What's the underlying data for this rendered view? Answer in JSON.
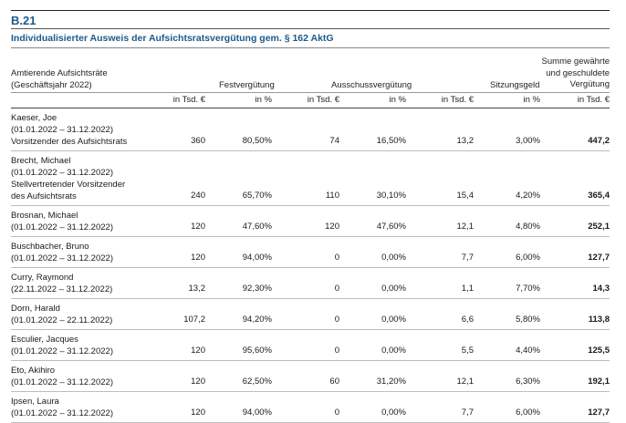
{
  "doc": {
    "tag": "B.21",
    "title": "Individualisierter Ausweis der Aufsichtsratsvergütung gem. § 162 AktG"
  },
  "header": {
    "member_col_line1": "Amtierende Aufsichtsräte",
    "member_col_line2": "(Geschäftsjahr 2022)",
    "fixed": "Festvergütung",
    "committee": "Ausschussvergütung",
    "attendance": "Sitzungsgeld",
    "total_line1": "Summe gewährte",
    "total_line2": "und geschuldete",
    "total_line3": "Vergütung",
    "units": {
      "fixed_abs": "in Tsd. €",
      "fixed_pct": "in %",
      "committee_abs": "in Tsd. €",
      "committee_pct": "in %",
      "attendance_abs": "in Tsd. €",
      "attendance_pct": "in %",
      "total_abs": "in Tsd. €"
    }
  },
  "rows": [
    {
      "lines": [
        "Kaeser, Joe",
        "(01.01.2022 – 31.12.2022)",
        "Vorsitzender des Aufsichtsrats"
      ],
      "fixed_abs": "360",
      "fixed_pct": "80,50%",
      "committee_abs": "74",
      "committee_pct": "16,50%",
      "attendance_abs": "13,2",
      "attendance_pct": "3,00%",
      "total": "447,2"
    },
    {
      "lines": [
        "Brecht, Michael",
        "(01.01.2022 – 31.12.2022)",
        "Stellvertretender Vorsitzender",
        "des Aufsichtsrats"
      ],
      "fixed_abs": "240",
      "fixed_pct": "65,70%",
      "committee_abs": "110",
      "committee_pct": "30,10%",
      "attendance_abs": "15,4",
      "attendance_pct": "4,20%",
      "total": "365,4"
    },
    {
      "lines": [
        "Brosnan, Michael",
        "(01.01.2022 – 31.12.2022)"
      ],
      "fixed_abs": "120",
      "fixed_pct": "47,60%",
      "committee_abs": "120",
      "committee_pct": "47,60%",
      "attendance_abs": "12,1",
      "attendance_pct": "4,80%",
      "total": "252,1"
    },
    {
      "lines": [
        "Buschbacher, Bruno",
        "(01.01.2022 – 31.12.2022)"
      ],
      "fixed_abs": "120",
      "fixed_pct": "94,00%",
      "committee_abs": "0",
      "committee_pct": "0,00%",
      "attendance_abs": "7,7",
      "attendance_pct": "6,00%",
      "total": "127,7"
    },
    {
      "lines": [
        "Curry, Raymond",
        "(22.11.2022 – 31.12.2022)"
      ],
      "fixed_abs": "13,2",
      "fixed_pct": "92,30%",
      "committee_abs": "0",
      "committee_pct": "0,00%",
      "attendance_abs": "1,1",
      "attendance_pct": "7,70%",
      "total": "14,3"
    },
    {
      "lines": [
        "Dorn, Harald",
        "(01.01.2022 – 22.11.2022)"
      ],
      "fixed_abs": "107,2",
      "fixed_pct": "94,20%",
      "committee_abs": "0",
      "committee_pct": "0,00%",
      "attendance_abs": "6,6",
      "attendance_pct": "5,80%",
      "total": "113,8"
    },
    {
      "lines": [
        "Esculier, Jacques",
        "(01.01.2022 – 31.12.2022)"
      ],
      "fixed_abs": "120",
      "fixed_pct": "95,60%",
      "committee_abs": "0",
      "committee_pct": "0,00%",
      "attendance_abs": "5,5",
      "attendance_pct": "4,40%",
      "total": "125,5"
    },
    {
      "lines": [
        "Eto, Akihiro",
        "(01.01.2022 – 31.12.2022)"
      ],
      "fixed_abs": "120",
      "fixed_pct": "62,50%",
      "committee_abs": "60",
      "committee_pct": "31,20%",
      "attendance_abs": "12,1",
      "attendance_pct": "6,30%",
      "total": "192,1"
    },
    {
      "lines": [
        "Ipsen, Laura",
        "(01.01.2022 – 31.12.2022)"
      ],
      "fixed_abs": "120",
      "fixed_pct": "94,00%",
      "committee_abs": "0",
      "committee_pct": "0,00%",
      "attendance_abs": "7,7",
      "attendance_pct": "6,00%",
      "total": "127,7"
    }
  ]
}
